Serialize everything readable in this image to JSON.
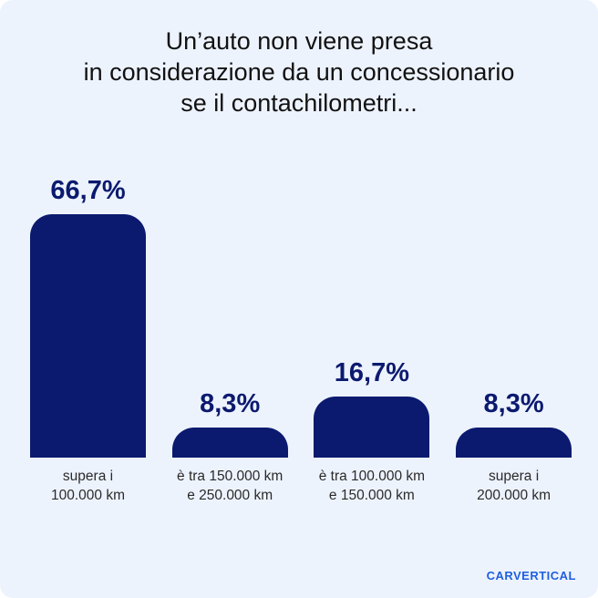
{
  "chart_data": {
    "type": "bar",
    "title": "Un’auto non viene presa\nin considerazione da un concessionario\nse il contachilometri...",
    "categories": [
      "supera i\n100.000 km",
      "è tra 150.000 km\ne 250.000 km",
      "è tra 100.000 km\ne 150.000 km",
      "supera i\n200.000 km"
    ],
    "values": [
      66.7,
      8.3,
      16.7,
      8.3
    ],
    "value_labels": [
      "66,7%",
      "8,3%",
      "16,7%",
      "8,3%"
    ],
    "color": "#0b1a6f"
  },
  "brand": "CARVERTICAL"
}
